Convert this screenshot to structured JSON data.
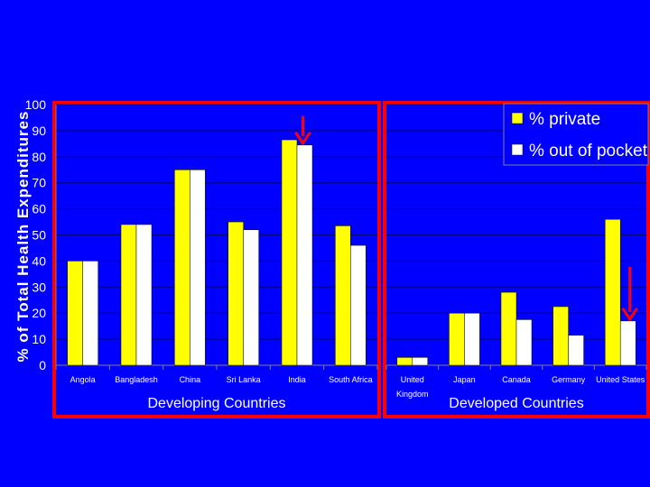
{
  "chart_data": {
    "type": "bar",
    "ylabel": "% of Total Health Expenditures",
    "ylim": [
      0,
      100
    ],
    "yticks": [
      0,
      10,
      20,
      30,
      40,
      50,
      60,
      70,
      80,
      90,
      100
    ],
    "grid": true,
    "legend_position": "top-right",
    "series": [
      {
        "name": "% private",
        "color": "#FFFF00"
      },
      {
        "name": "% out of pocket",
        "color": "#FFFFFF"
      }
    ],
    "groups": [
      {
        "label": "Developing Countries",
        "categories": [
          "Angola",
          "Bangladesh",
          "China",
          "Sri Lanka",
          "India",
          "South Africa"
        ],
        "private": [
          40,
          54,
          75,
          55,
          86.5,
          53.5
        ],
        "out_of_pocket": [
          40,
          54,
          75,
          52,
          84.5,
          46
        ],
        "highlight_category": "India"
      },
      {
        "label": "Developed Countries",
        "categories": [
          "United Kingdom",
          "Japan",
          "Canada",
          "Germany",
          "United States"
        ],
        "private": [
          3,
          20,
          28,
          22.5,
          56
        ],
        "out_of_pocket": [
          3,
          20,
          17.5,
          11.5,
          17
        ],
        "highlight_category": "United States"
      }
    ],
    "colors": {
      "background": "#0000FF",
      "frame": "#FF0000",
      "arrow": "#FF0000",
      "axis": "#808080"
    }
  }
}
